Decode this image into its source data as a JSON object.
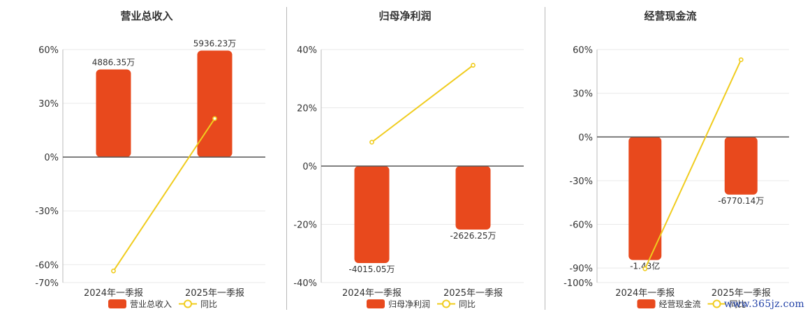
{
  "colors": {
    "bar": "#e8491d",
    "line": "#f0cc1e",
    "grid": "#e9e9e9",
    "axis": "#555555",
    "text": "#333333"
  },
  "watermark": "www.365jz.com",
  "chart_data": [
    {
      "type": "bar",
      "title": "营业总收入",
      "categories": [
        "2024年一季报",
        "2025年一季报"
      ],
      "ylim": [
        -70,
        60
      ],
      "yticks": [
        -70,
        -60,
        -30,
        0,
        30,
        60
      ],
      "tick_suffix": "%",
      "grid": true,
      "legend_position": "bottom-center",
      "series": [
        {
          "name": "营业总收入",
          "kind": "bar",
          "values": [
            48.9,
            59.4
          ],
          "labels": [
            "4886.35万",
            "5936.23万"
          ]
        },
        {
          "name": "同比",
          "kind": "line",
          "values": [
            -63.5,
            21.5
          ]
        }
      ]
    },
    {
      "type": "bar",
      "title": "归母净利润",
      "categories": [
        "2024年一季报",
        "2025年一季报"
      ],
      "ylim": [
        -40,
        40
      ],
      "yticks": [
        -40,
        -20,
        0,
        20,
        40
      ],
      "tick_suffix": "%",
      "grid": true,
      "legend_position": "bottom-center",
      "series": [
        {
          "name": "归母净利润",
          "kind": "bar",
          "values": [
            -33.3,
            -21.8
          ],
          "labels": [
            "-4015.05万",
            "-2626.25万"
          ]
        },
        {
          "name": "同比",
          "kind": "line",
          "values": [
            8.2,
            34.6
          ]
        }
      ]
    },
    {
      "type": "bar",
      "title": "经营现金流",
      "categories": [
        "2024年一季报",
        "2025年一季报"
      ],
      "ylim": [
        -100,
        60
      ],
      "yticks": [
        -100,
        -90,
        -60,
        -30,
        0,
        30,
        60
      ],
      "tick_suffix": "%",
      "grid": true,
      "legend_position": "bottom-center",
      "series": [
        {
          "name": "经营现金流",
          "kind": "bar",
          "values": [
            -84.5,
            -39.6
          ],
          "labels": [
            "-1.43亿",
            "-6770.14万"
          ]
        },
        {
          "name": "同比",
          "kind": "line",
          "values": [
            -90.5,
            53.0
          ]
        }
      ]
    }
  ]
}
